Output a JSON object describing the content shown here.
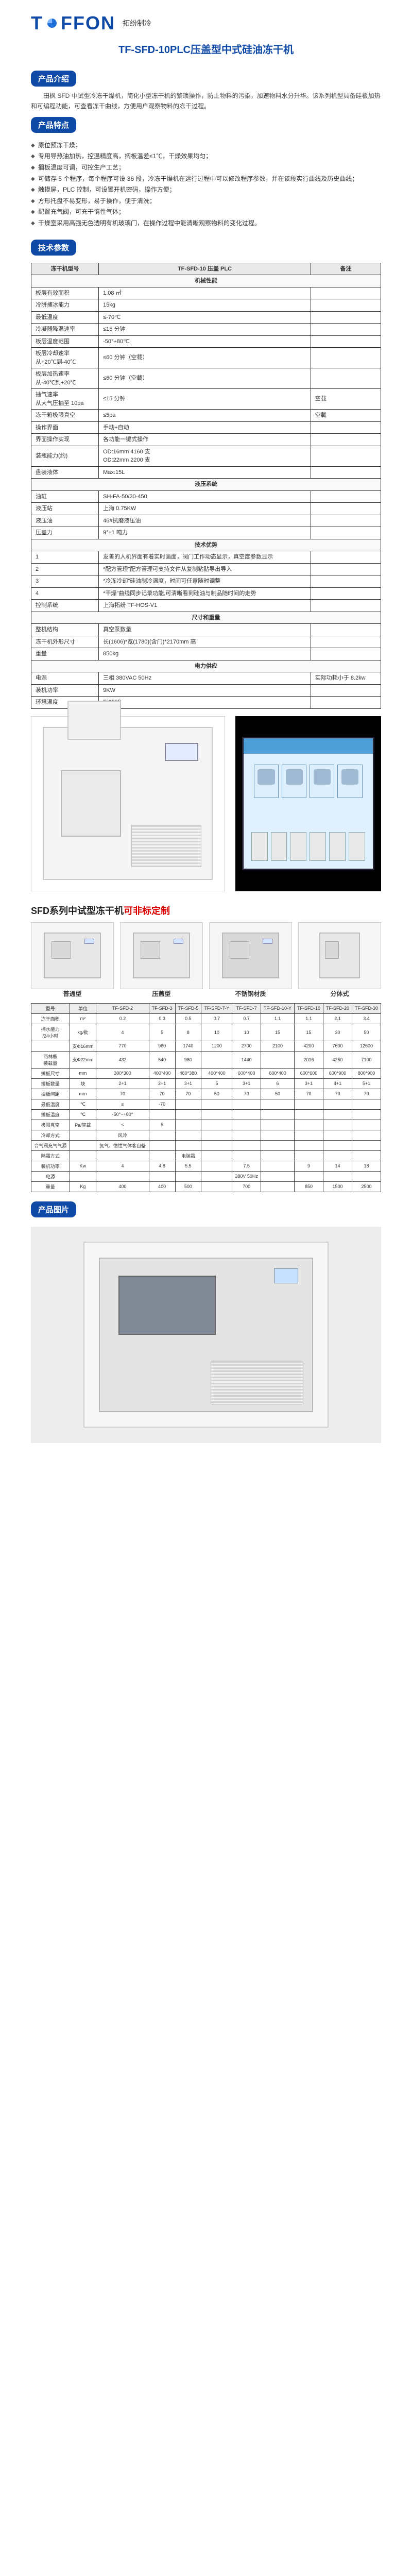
{
  "logo": {
    "text": "TOFFON",
    "cn": "拓纷制冷"
  },
  "title": "TF-SFD-10PLC压盖型中式硅油冻干机",
  "sections": {
    "intro": "产品介绍",
    "features": "产品特点",
    "params": "技术参数",
    "photos": "产品图片"
  },
  "intro_desc": "田枫 SFD 中试型冷冻干燥机，简化小型冻干机的繁琐操作，防止物料的污染，加速物料水分升华。该系列机型具备硅板加热和可编程功能，可查看冻干曲线，方便用户观察物料的冻干过程。",
  "features": [
    "原位预冻干燥；",
    "专用导热油加热，控温精度高，搁板温差≤1℃，干燥效果均匀；",
    "搁板温度可调，可控生产工艺；",
    "可储存 5 个程序，每个程序可设 36 段，冷冻干燥机在运行过程中可以修改程序参数，并在该段实行曲线及历史曲线；",
    "触摸屏，PLC 控制，可设置开机密码，操作方便；",
    "方形托盘不易变形，易于操作，便于清洗；",
    "配置充气阀，可充干惰性气体；",
    "干燥室采用高强无色透明有机玻璃门，在操作过程中能清晰观察物料的变化过程。"
  ],
  "spec_headers": [
    "冻干机型号",
    "TF-SFD-10 压盖 PLC",
    "备注"
  ],
  "spec_sections": {
    "mech": "机械性能",
    "hyd": "液压系统",
    "adv": "技术优势",
    "dim": "尺寸和重量",
    "pow": "电力供应"
  },
  "spec_rows_mech": [
    [
      "板层有效面积",
      "1.08 ㎡",
      ""
    ],
    [
      "冷阱捕冰能力",
      "15kg",
      ""
    ],
    [
      "最低温度",
      "≤-70℃",
      ""
    ],
    [
      "冷凝器降温速率",
      "≤15 分钟",
      ""
    ],
    [
      "板层温度范围",
      "-50°+80℃",
      ""
    ],
    [
      "板层冷却速率\n从+20℃到-40℃",
      "≤60 分钟（空载）",
      ""
    ],
    [
      "板层加热速率\n从-40℃到+20℃",
      "≤60 分钟（空载）",
      ""
    ],
    [
      "抽气速率\n从大气压抽至 10pa",
      "≤15 分钟",
      "空载"
    ],
    [
      "冻干箱极限真空",
      "≤5pa",
      "空载"
    ],
    [
      "操作界面",
      "手动+自动",
      ""
    ],
    [
      "界面操作实现",
      "各功能一键式操作",
      ""
    ],
    [
      "装瓶能力(约)",
      "OD:16mm  4160 支\nOD:22mm  2200 支",
      ""
    ],
    [
      "盘装液体",
      "Max:15L",
      ""
    ]
  ],
  "spec_rows_hyd": [
    [
      "油缸",
      "SH-FA-50/30-450",
      ""
    ],
    [
      "液压站",
      "上海 0.75KW",
      ""
    ],
    [
      "液压油",
      "46#抗磨液压油",
      ""
    ],
    [
      "压盖力",
      "9°±1 吨力",
      ""
    ]
  ],
  "spec_rows_adv": [
    [
      "1",
      "友善的人机界面有着实时画面，阀门工作动态显示，真空度参数显示",
      ""
    ],
    [
      "2",
      "*配方管理\"配方管理可支持文件从复制粘贴导出导入",
      ""
    ],
    [
      "3",
      "*冷冻冷却\"硅油制冷温度，时间可任意随时调整",
      ""
    ],
    [
      "4",
      "*干燥\"曲线同步记录功能,可清晰看到硅油与制品随时间的走势",
      ""
    ]
  ],
  "spec_rows_ctrl": [
    [
      "控制系统",
      "上海拓纷 TF-HOS-V1",
      ""
    ]
  ],
  "spec_rows_dim": [
    [
      "整机结构",
      "真空泵数量",
      ""
    ],
    [
      "冻干机外形尺寸",
      "长(1606)*宽(1780)(含门)*2170mm 高",
      ""
    ],
    [
      "重量",
      "850kg",
      ""
    ]
  ],
  "spec_rows_pow": [
    [
      "电源",
      "三相 380VAC 50Hz",
      "实际功耗小于 8.2kw"
    ],
    [
      "装机功率",
      "9KW",
      ""
    ],
    [
      "环境温度",
      "5°25℃",
      ""
    ]
  ],
  "series_title": "SFD系列中试型冻干机",
  "series_suffix": "可非标定制",
  "models": [
    {
      "label": "普通型"
    },
    {
      "label": "压盖型"
    },
    {
      "label": "不锈钢材质"
    },
    {
      "label": "分体式"
    }
  ],
  "grid_headers": [
    "型号",
    "单位",
    "TF-SFD-2",
    "TF-SFD-3",
    "TF-SFD-5",
    "TF-SFD-7-Y",
    "TF-SFD-7",
    "TF-SFD-10-Y",
    "TF-SFD-10",
    "TF-SFD-20",
    "TF-SFD-30"
  ],
  "grid_rows": [
    [
      "冻干面积",
      "m²",
      "0.2",
      "0.3",
      "0.5",
      "0.7",
      "0.7",
      "1.1",
      "1.1",
      "2.1",
      "3.4"
    ],
    [
      "捕水能力\n/24小时",
      "kg/批",
      "4",
      "5",
      "8",
      "10",
      "10",
      "15",
      "15",
      "30",
      "50"
    ],
    [
      "",
      "支Ф16mm",
      "770",
      "960",
      "1740",
      "1200",
      "2700",
      "2100",
      "4200",
      "7600",
      "12600"
    ],
    [
      "西林瓶\n装载量",
      "支Ф22mm",
      "432",
      "540",
      "980",
      "",
      "1440",
      "",
      "2016",
      "4250",
      "7100"
    ],
    [
      "搁板尺寸",
      "mm",
      "300*300",
      "400*400",
      "480*380",
      "400*400",
      "600*400",
      "600*400",
      "600*600",
      "600*900",
      "800*900"
    ],
    [
      "搁板数量",
      "块",
      "2+1",
      "2+1",
      "3+1",
      "5",
      "3+1",
      "6",
      "3+1",
      "4+1",
      "5+1"
    ],
    [
      "搁板间距",
      "mm",
      "70",
      "70",
      "70",
      "50",
      "70",
      "50",
      "70",
      "70",
      "70"
    ],
    [
      "最低温度",
      "℃",
      "≤",
      "-70",
      "",
      "",
      "",
      "",
      "",
      "",
      ""
    ],
    [
      "搁板温度",
      "℃",
      "-50°~+80°",
      "",
      "",
      "",
      "",
      "",
      "",
      "",
      ""
    ],
    [
      "极限真空",
      "Pa/空载",
      "≤",
      "5",
      "",
      "",
      "",
      "",
      "",
      "",
      ""
    ],
    [
      "冷却方式",
      "",
      "风冷",
      "",
      "",
      "",
      "",
      "",
      "",
      "",
      ""
    ],
    [
      "合气阀充气气源",
      "",
      "氮气、惰性气体客自备",
      "",
      "",
      "",
      "",
      "",
      "",
      "",
      ""
    ],
    [
      "除霜方式",
      "",
      "",
      "",
      "电除霜",
      "",
      "",
      "",
      "",
      "",
      ""
    ],
    [
      "装机功率",
      "Kw",
      "4",
      "4.8",
      "5.5",
      "",
      "7.5",
      "",
      "9",
      "14",
      "18"
    ],
    [
      "电源",
      "",
      "",
      "",
      "",
      "",
      "380V 50Hz",
      "",
      "",
      "",
      ""
    ],
    [
      "重量",
      "Kg",
      "400",
      "400",
      "500",
      "",
      "700",
      "",
      "850",
      "1500",
      "2500"
    ]
  ]
}
